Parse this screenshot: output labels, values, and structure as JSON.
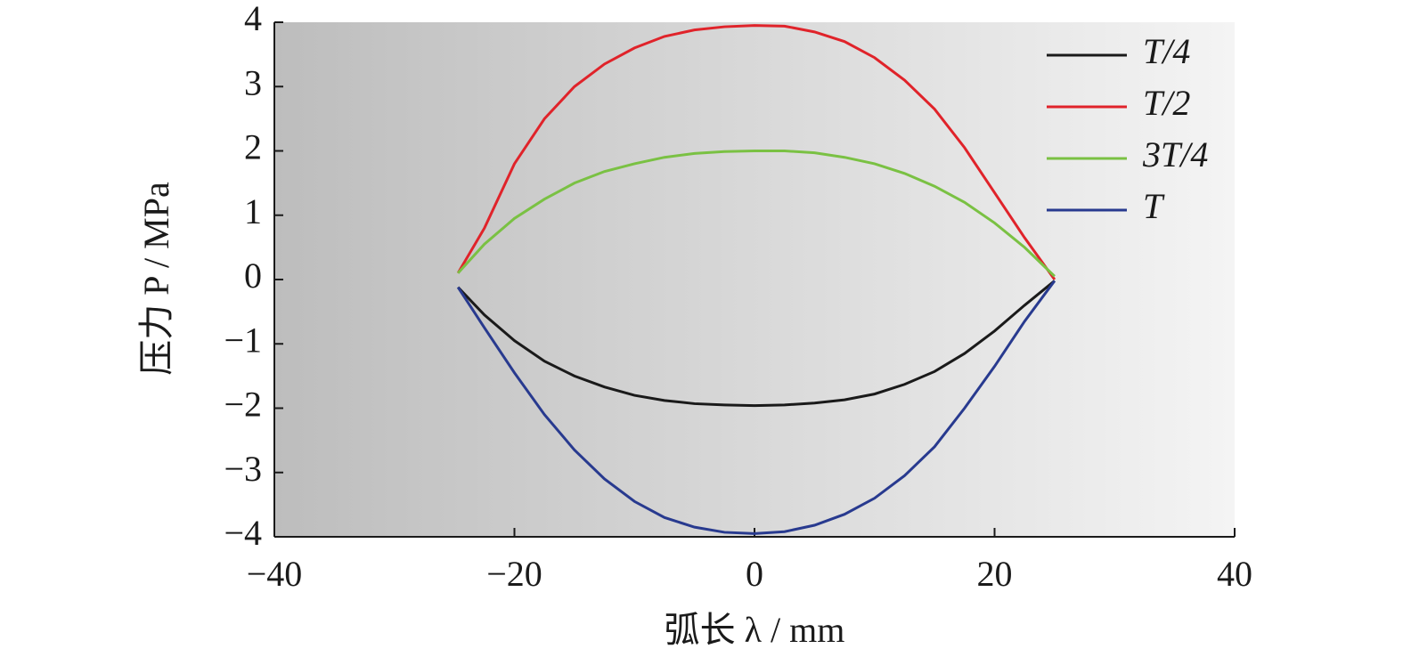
{
  "chart_data": {
    "type": "line",
    "x_label": "弧长 λ / mm",
    "y_label": "压力 P / MPa",
    "x": [
      -24.7,
      -22.5,
      -20,
      -17.5,
      -15,
      -12.5,
      -10,
      -7.5,
      -5,
      -2.5,
      0,
      2.5,
      5,
      7.5,
      10,
      12.5,
      15,
      17.5,
      20,
      22.5,
      25
    ],
    "series": [
      {
        "name": "T/4",
        "color": "#1a1a1a",
        "values": [
          -0.12,
          -0.55,
          -0.95,
          -1.27,
          -1.5,
          -1.67,
          -1.8,
          -1.88,
          -1.93,
          -1.95,
          -1.96,
          -1.95,
          -1.92,
          -1.87,
          -1.78,
          -1.63,
          -1.43,
          -1.15,
          -0.8,
          -0.4,
          -0.02
        ]
      },
      {
        "name": "T/2",
        "color": "#e0232a",
        "values": [
          0.1,
          0.8,
          1.8,
          2.5,
          3.0,
          3.35,
          3.6,
          3.78,
          3.88,
          3.93,
          3.95,
          3.94,
          3.85,
          3.7,
          3.45,
          3.1,
          2.65,
          2.05,
          1.35,
          0.65,
          0
        ]
      },
      {
        "name": "3T/4",
        "color": "#7ac143",
        "values": [
          0.1,
          0.55,
          0.95,
          1.25,
          1.5,
          1.68,
          1.8,
          1.9,
          1.96,
          1.99,
          2.0,
          2.0,
          1.97,
          1.9,
          1.8,
          1.65,
          1.45,
          1.2,
          0.88,
          0.5,
          0.05
        ]
      },
      {
        "name": "T",
        "color": "#283a8f",
        "values": [
          -0.12,
          -0.75,
          -1.45,
          -2.1,
          -2.65,
          -3.1,
          -3.45,
          -3.7,
          -3.85,
          -3.93,
          -3.95,
          -3.92,
          -3.82,
          -3.65,
          -3.4,
          -3.05,
          -2.6,
          -2.0,
          -1.35,
          -0.65,
          -0.02
        ]
      }
    ],
    "xlim": [
      -40,
      40
    ],
    "xticks": [
      {
        "value": -40,
        "label": "−40"
      },
      {
        "value": -20,
        "label": "−20"
      },
      0,
      20,
      40
    ],
    "ylim": [
      -4,
      4
    ],
    "yticks": [
      {
        "value": -4,
        "label": "−4"
      },
      {
        "value": -3,
        "label": "−3"
      },
      {
        "value": -2,
        "label": "−2"
      },
      {
        "value": -1,
        "label": "−1"
      },
      0,
      1,
      2,
      3,
      4
    ],
    "legend": "upper right"
  }
}
